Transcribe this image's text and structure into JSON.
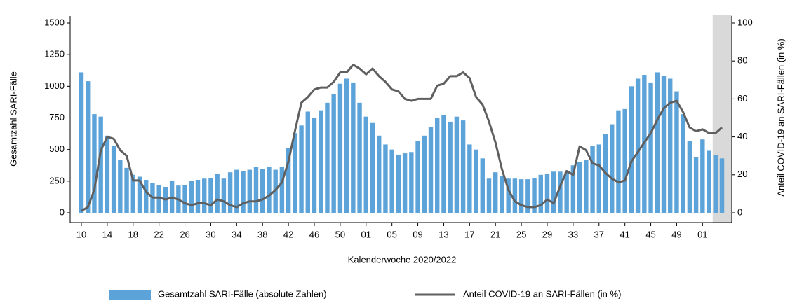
{
  "chart_data": {
    "type": "combo",
    "x_label": "Kalenderwoche 2020/2022",
    "y_label": "Gesamtzahl SARI-Fälle",
    "y2_label": "Anteil COVID-19 an SARI-Fällen (in %)",
    "categories": [
      "10",
      null,
      null,
      null,
      "14",
      null,
      null,
      null,
      "18",
      null,
      null,
      null,
      "22",
      null,
      null,
      null,
      "26",
      null,
      null,
      null,
      "30",
      null,
      null,
      null,
      "34",
      null,
      null,
      null,
      "38",
      null,
      null,
      null,
      "42",
      null,
      null,
      null,
      "46",
      null,
      null,
      null,
      "50",
      null,
      null,
      null,
      "01",
      null,
      null,
      null,
      "05",
      null,
      null,
      null,
      "09",
      null,
      null,
      null,
      "13",
      null,
      null,
      null,
      "17",
      null,
      null,
      null,
      "21",
      null,
      null,
      null,
      "25",
      null,
      null,
      null,
      "29",
      null,
      null,
      null,
      "33",
      null,
      null,
      null,
      "37",
      null,
      null,
      null,
      "41",
      null,
      null,
      null,
      "45",
      null,
      null,
      null,
      "49",
      null,
      null,
      null,
      "01",
      null,
      null,
      null
    ],
    "series": [
      {
        "name": "Gesamtzahl SARI-Fälle (absolute Zahlen)",
        "type": "bar",
        "color": "#5ba3d9",
        "values": [
          1110,
          1040,
          780,
          760,
          610,
          530,
          420,
          355,
          300,
          285,
          260,
          235,
          220,
          205,
          255,
          215,
          220,
          250,
          260,
          270,
          275,
          310,
          270,
          320,
          340,
          330,
          340,
          360,
          345,
          360,
          340,
          360,
          515,
          630,
          690,
          800,
          750,
          810,
          870,
          940,
          1020,
          1060,
          1030,
          870,
          760,
          710,
          610,
          540,
          500,
          460,
          470,
          480,
          570,
          610,
          680,
          750,
          770,
          720,
          760,
          730,
          540,
          500,
          430,
          270,
          320,
          290,
          270,
          270,
          265,
          265,
          275,
          300,
          310,
          325,
          325,
          320,
          375,
          400,
          420,
          530,
          540,
          620,
          700,
          810,
          820,
          1000,
          1060,
          1090,
          1030,
          1110,
          1080,
          1060,
          960,
          780,
          565,
          440,
          580,
          490,
          455,
          430
        ]
      },
      {
        "name": "Anteil COVID-19 an SARI-Fällen (in %)",
        "type": "line",
        "axis": "y2",
        "color": "#5f5f5f",
        "values": [
          1,
          3,
          12,
          33,
          40,
          39,
          33,
          30,
          17,
          17,
          11,
          8,
          8,
          7,
          8,
          7,
          5,
          4,
          5,
          5,
          4,
          7,
          6,
          4,
          3,
          5,
          6,
          6,
          7,
          9,
          12,
          16,
          27,
          43,
          58,
          61,
          65,
          66,
          66,
          69,
          74,
          74,
          78,
          76,
          73,
          76,
          72,
          69,
          65,
          64,
          60,
          59,
          60,
          60,
          60,
          67,
          68,
          72,
          72,
          74,
          71,
          61,
          57,
          48,
          37,
          23,
          12,
          6,
          4,
          3,
          3,
          4,
          7,
          5,
          14,
          22,
          20,
          35,
          33,
          26,
          25,
          21,
          18,
          16,
          17,
          27,
          32,
          37,
          42,
          49,
          55,
          58,
          59,
          53,
          45,
          43,
          44,
          42,
          42,
          45
        ]
      }
    ],
    "ylim": [
      0,
      1500
    ],
    "yticks": [
      0,
      250,
      500,
      750,
      1000,
      1250,
      1500
    ],
    "y2lim": [
      0,
      100
    ],
    "y2ticks": [
      0,
      20,
      40,
      60,
      80,
      100
    ]
  }
}
